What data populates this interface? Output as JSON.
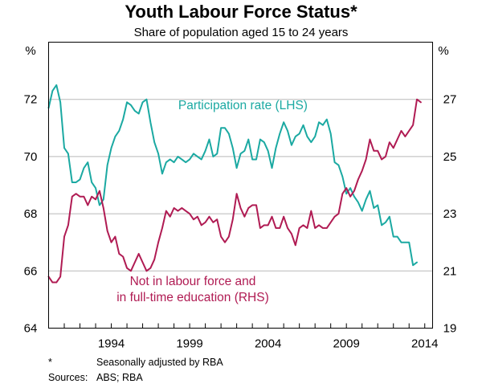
{
  "chart_data": {
    "type": "line",
    "title": "Youth Labour Force Status*",
    "subtitle": "Share of population aged 15 to 24 years",
    "left_axis": {
      "unit": "%",
      "ylim": [
        64,
        74
      ],
      "ticks": [
        64,
        66,
        68,
        70,
        72
      ]
    },
    "right_axis": {
      "unit": "%",
      "ylim": [
        19,
        29
      ],
      "ticks": [
        19,
        21,
        23,
        25,
        27
      ]
    },
    "x_axis": {
      "xlim": [
        1990.0,
        2014.5
      ],
      "ticks": [
        1994,
        1999,
        2004,
        2009,
        2014
      ]
    },
    "grid": "horizontal",
    "series": [
      {
        "name": "Participation rate (LHS)",
        "axis": "left",
        "color": "#1ba9a2",
        "x": [
          1990.0,
          1990.25,
          1990.5,
          1990.75,
          1991.0,
          1991.25,
          1991.5,
          1991.75,
          1992.0,
          1992.25,
          1992.5,
          1992.75,
          1993.0,
          1993.25,
          1993.5,
          1993.75,
          1994.0,
          1994.25,
          1994.5,
          1994.75,
          1995.0,
          1995.25,
          1995.5,
          1995.75,
          1996.0,
          1996.25,
          1996.5,
          1996.75,
          1997.0,
          1997.25,
          1997.5,
          1997.75,
          1998.0,
          1998.25,
          1998.5,
          1998.75,
          1999.0,
          1999.25,
          1999.5,
          1999.75,
          2000.0,
          2000.25,
          2000.5,
          2000.75,
          2001.0,
          2001.25,
          2001.5,
          2001.75,
          2002.0,
          2002.25,
          2002.5,
          2002.75,
          2003.0,
          2003.25,
          2003.5,
          2003.75,
          2004.0,
          2004.25,
          2004.5,
          2004.75,
          2005.0,
          2005.25,
          2005.5,
          2005.75,
          2006.0,
          2006.25,
          2006.5,
          2006.75,
          2007.0,
          2007.25,
          2007.5,
          2007.75,
          2008.0,
          2008.25,
          2008.5,
          2008.75,
          2009.0,
          2009.25,
          2009.5,
          2009.75,
          2010.0,
          2010.25,
          2010.5,
          2010.75,
          2011.0,
          2011.25,
          2011.5,
          2011.75,
          2012.0,
          2012.25,
          2012.5,
          2012.75,
          2013.0,
          2013.25,
          2013.5,
          2013.75
        ],
        "values": [
          71.7,
          72.3,
          72.5,
          71.9,
          70.3,
          70.1,
          69.1,
          69.1,
          69.2,
          69.6,
          69.8,
          69.1,
          68.9,
          68.3,
          68.5,
          69.7,
          70.3,
          70.7,
          70.9,
          71.3,
          71.9,
          71.8,
          71.6,
          71.5,
          71.9,
          72.0,
          71.2,
          70.5,
          70.1,
          69.4,
          69.8,
          69.9,
          69.8,
          70.0,
          69.9,
          69.8,
          69.9,
          70.1,
          70.0,
          69.9,
          70.2,
          70.6,
          70.0,
          70.1,
          71.0,
          71.0,
          70.8,
          70.3,
          69.6,
          70.1,
          70.2,
          70.6,
          69.9,
          69.9,
          70.6,
          70.5,
          70.2,
          69.6,
          70.3,
          70.8,
          71.2,
          70.9,
          70.4,
          70.7,
          70.8,
          71.1,
          70.7,
          70.5,
          70.7,
          71.2,
          71.1,
          71.3,
          70.8,
          69.8,
          69.7,
          69.3,
          68.7,
          68.9,
          68.6,
          68.4,
          68.1,
          68.5,
          68.8,
          68.2,
          68.3,
          67.6,
          67.7,
          67.9,
          67.2,
          67.2,
          67.0,
          67.0,
          67.0,
          66.2,
          66.3,
          null
        ]
      },
      {
        "name": "Not in labour force and in full-time education (RHS)",
        "axis": "right",
        "color": "#b01b53",
        "x": [
          1990.0,
          1990.25,
          1990.5,
          1990.75,
          1991.0,
          1991.25,
          1991.5,
          1991.75,
          1992.0,
          1992.25,
          1992.5,
          1992.75,
          1993.0,
          1993.25,
          1993.5,
          1993.75,
          1994.0,
          1994.25,
          1994.5,
          1994.75,
          1995.0,
          1995.25,
          1995.5,
          1995.75,
          1996.0,
          1996.25,
          1996.5,
          1996.75,
          1997.0,
          1997.25,
          1997.5,
          1997.75,
          1998.0,
          1998.25,
          1998.5,
          1998.75,
          1999.0,
          1999.25,
          1999.5,
          1999.75,
          2000.0,
          2000.25,
          2000.5,
          2000.75,
          2001.0,
          2001.25,
          2001.5,
          2001.75,
          2002.0,
          2002.25,
          2002.5,
          2002.75,
          2003.0,
          2003.25,
          2003.5,
          2003.75,
          2004.0,
          2004.25,
          2004.5,
          2004.75,
          2005.0,
          2005.25,
          2005.5,
          2005.75,
          2006.0,
          2006.25,
          2006.5,
          2006.75,
          2007.0,
          2007.25,
          2007.5,
          2007.75,
          2008.0,
          2008.25,
          2008.5,
          2008.75,
          2009.0,
          2009.25,
          2009.5,
          2009.75,
          2010.0,
          2010.25,
          2010.5,
          2010.75,
          2011.0,
          2011.25,
          2011.5,
          2011.75,
          2012.0,
          2012.25,
          2012.5,
          2012.75,
          2013.0,
          2013.25,
          2013.5,
          2013.75
        ],
        "values": [
          20.8,
          20.6,
          20.6,
          20.8,
          22.2,
          22.6,
          23.6,
          23.7,
          23.6,
          23.6,
          23.3,
          23.6,
          23.5,
          23.8,
          23.2,
          22.4,
          22.0,
          22.2,
          21.6,
          21.5,
          21.1,
          21.0,
          21.3,
          21.6,
          21.3,
          21.0,
          21.1,
          21.4,
          22.0,
          22.5,
          23.1,
          22.9,
          23.2,
          23.1,
          23.2,
          23.1,
          23.0,
          22.8,
          22.9,
          22.6,
          22.7,
          22.9,
          22.7,
          22.8,
          22.2,
          22.0,
          22.2,
          22.8,
          23.7,
          23.2,
          22.9,
          23.2,
          23.3,
          23.3,
          22.5,
          22.6,
          22.6,
          22.9,
          22.5,
          22.5,
          22.9,
          22.5,
          22.3,
          21.9,
          22.5,
          22.6,
          22.5,
          23.1,
          22.5,
          22.6,
          22.5,
          22.5,
          22.7,
          22.9,
          23.0,
          23.7,
          23.9,
          23.6,
          23.8,
          24.2,
          24.5,
          24.9,
          25.6,
          25.2,
          25.2,
          24.9,
          25.0,
          25.5,
          25.3,
          25.6,
          25.9,
          25.7,
          25.9,
          26.1,
          27.0,
          26.9
        ]
      }
    ],
    "annotations": [
      {
        "text": "Participation rate (LHS)",
        "x": 2002.4,
        "y_left": 71.65,
        "series": 0,
        "lines": [
          "Participation rate (LHS)"
        ]
      },
      {
        "text": "Not in labour force and in full-time education (RHS)",
        "x": 1999.2,
        "y_right": 20.5,
        "series": 1,
        "lines": [
          "Not in labour force and",
          "in full-time education (RHS)"
        ]
      }
    ]
  },
  "footnotes": {
    "star_mark": "*",
    "star_text": "Seasonally adjusted by RBA",
    "sources_label": "Sources:",
    "sources_text": "ABS; RBA"
  }
}
